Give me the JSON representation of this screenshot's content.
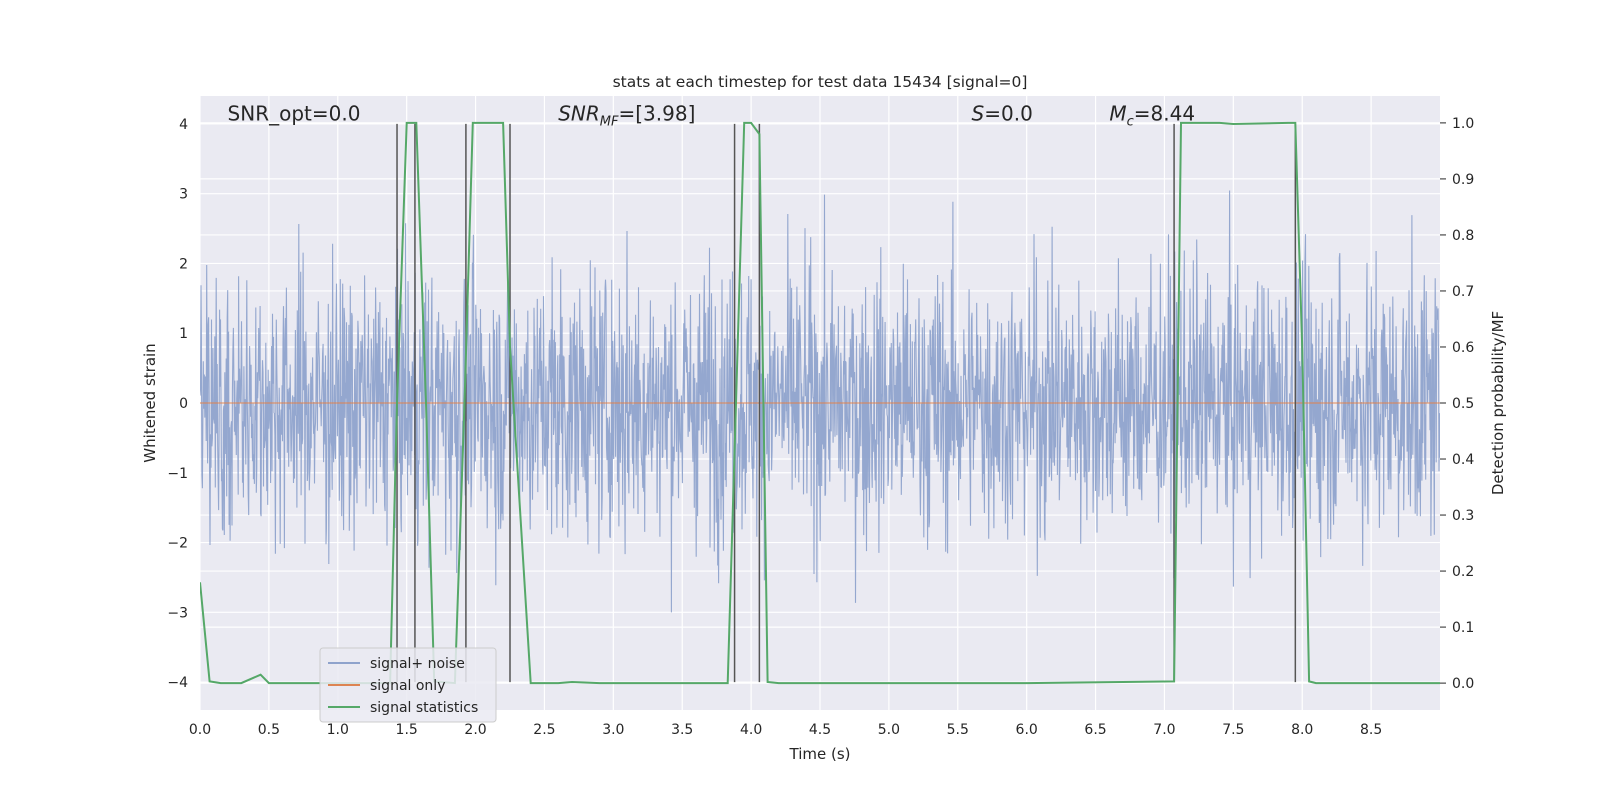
{
  "chart_data": {
    "type": "line",
    "title": "stats at each timestep for test data 15434 [signal=0]",
    "xlabel": "Time (s)",
    "ylabel_left": "Whitened strain",
    "ylabel_right": "Detection probability/MF",
    "xlim": [
      0,
      9.0
    ],
    "ylim_left": [
      -4.4,
      4.4
    ],
    "ylim_right": [
      -0.048,
      1.048
    ],
    "x_ticks": [
      0.0,
      0.5,
      1.0,
      1.5,
      2.0,
      2.5,
      3.0,
      3.5,
      4.0,
      4.5,
      5.0,
      5.5,
      6.0,
      6.5,
      7.0,
      7.5,
      8.0,
      8.5
    ],
    "x_tick_labels": [
      "0.0",
      "0.5",
      "1.0",
      "1.5",
      "2.0",
      "2.5",
      "3.0",
      "3.5",
      "4.0",
      "4.5",
      "5.0",
      "5.5",
      "6.0",
      "6.5",
      "7.0",
      "7.5",
      "8.0",
      "8.5"
    ],
    "y_left_ticks": [
      -4,
      -3,
      -2,
      -1,
      0,
      1,
      2,
      3,
      4
    ],
    "y_left_tick_labels": [
      "−4",
      "−3",
      "−2",
      "−1",
      "0",
      "1",
      "2",
      "3",
      "4"
    ],
    "y_right_ticks": [
      0.0,
      0.1,
      0.2,
      0.3,
      0.4,
      0.5,
      0.6,
      0.7,
      0.8,
      0.9,
      1.0
    ],
    "y_right_tick_labels": [
      "0.0",
      "0.1",
      "0.2",
      "0.3",
      "0.4",
      "0.5",
      "0.6",
      "0.7",
      "0.8",
      "0.9",
      "1.0"
    ],
    "grid": true,
    "background": "#eaeaf2",
    "annotations": [
      {
        "text": "SNR_opt=0.0",
        "x": 0.2,
        "y": 4.15
      },
      {
        "text": "SNR",
        "sub": "MF",
        "rest": "=[3.98]",
        "italic": true,
        "x": 2.6,
        "y": 4.15
      },
      {
        "text": "S",
        "rest": "=0.0",
        "italic": true,
        "x": 5.6,
        "y": 4.15
      },
      {
        "text": "M",
        "sub": "c",
        "rest": "=8.44",
        "italic": true,
        "x": 6.6,
        "y": 4.15
      }
    ],
    "legend": {
      "placement": "lower-left",
      "entries": [
        {
          "label": "signal+ noise",
          "color": "#8fa3cc"
        },
        {
          "label": "signal only",
          "color": "#dd8452"
        },
        {
          "label": "signal statistics",
          "color": "#55a868"
        }
      ]
    },
    "series": [
      {
        "name": "signal+ noise",
        "color": "#8fa3cc",
        "kind": "noise",
        "duration": 9.0,
        "typical_amplitude": 1.6,
        "max_amplitude": 4.0
      },
      {
        "name": "signal only",
        "color": "#dd8452",
        "x": [
          0,
          9.0
        ],
        "y": [
          0,
          0
        ]
      },
      {
        "name": "signal statistics",
        "color": "#55a868",
        "x": [
          0.0,
          0.07,
          0.15,
          0.3,
          0.44,
          0.5,
          0.7,
          0.9,
          1.0,
          1.2,
          1.38,
          1.43,
          1.5,
          1.57,
          1.64,
          1.7,
          1.85,
          1.92,
          1.98,
          2.05,
          2.2,
          2.25,
          2.4,
          2.6,
          2.7,
          2.9,
          3.5,
          3.83,
          3.89,
          3.95,
          4.0,
          4.06,
          4.12,
          4.2,
          4.5,
          5.0,
          6.0,
          7.07,
          7.12,
          7.18,
          7.4,
          7.5,
          7.9,
          7.95,
          8.0,
          8.05,
          8.1,
          8.5,
          9.0
        ],
        "y": [
          0.18,
          0.003,
          0.0,
          0.0,
          0.015,
          0.0,
          0.0,
          0.0,
          0.0,
          0.0,
          0.0,
          0.5,
          1.0,
          1.0,
          0.5,
          0.003,
          0.0,
          0.5,
          1.0,
          1.0,
          1.0,
          0.6,
          0.0,
          0.0,
          0.002,
          0.0,
          0.0,
          0.0,
          0.5,
          1.0,
          1.0,
          0.98,
          0.002,
          0.0,
          0.0,
          0.0,
          0.0,
          0.003,
          1.0,
          1.0,
          1.0,
          0.998,
          1.0,
          1.0,
          0.6,
          0.003,
          0.0,
          0.0,
          0.0
        ]
      }
    ],
    "vertical_markers": [
      {
        "x": 1.43,
        "y0": -4.0,
        "y1": 4.0
      },
      {
        "x": 1.56,
        "y0": -4.0,
        "y1": 4.0
      },
      {
        "x": 1.93,
        "y0": -4.0,
        "y1": 4.0
      },
      {
        "x": 2.25,
        "y0": -4.0,
        "y1": 4.0
      },
      {
        "x": 3.88,
        "y0": -4.0,
        "y1": 4.0
      },
      {
        "x": 4.06,
        "y0": -4.0,
        "y1": 4.0
      },
      {
        "x": 7.07,
        "y0": -4.0,
        "y1": 4.0
      },
      {
        "x": 7.95,
        "y0": -4.0,
        "y1": 4.0
      }
    ]
  }
}
